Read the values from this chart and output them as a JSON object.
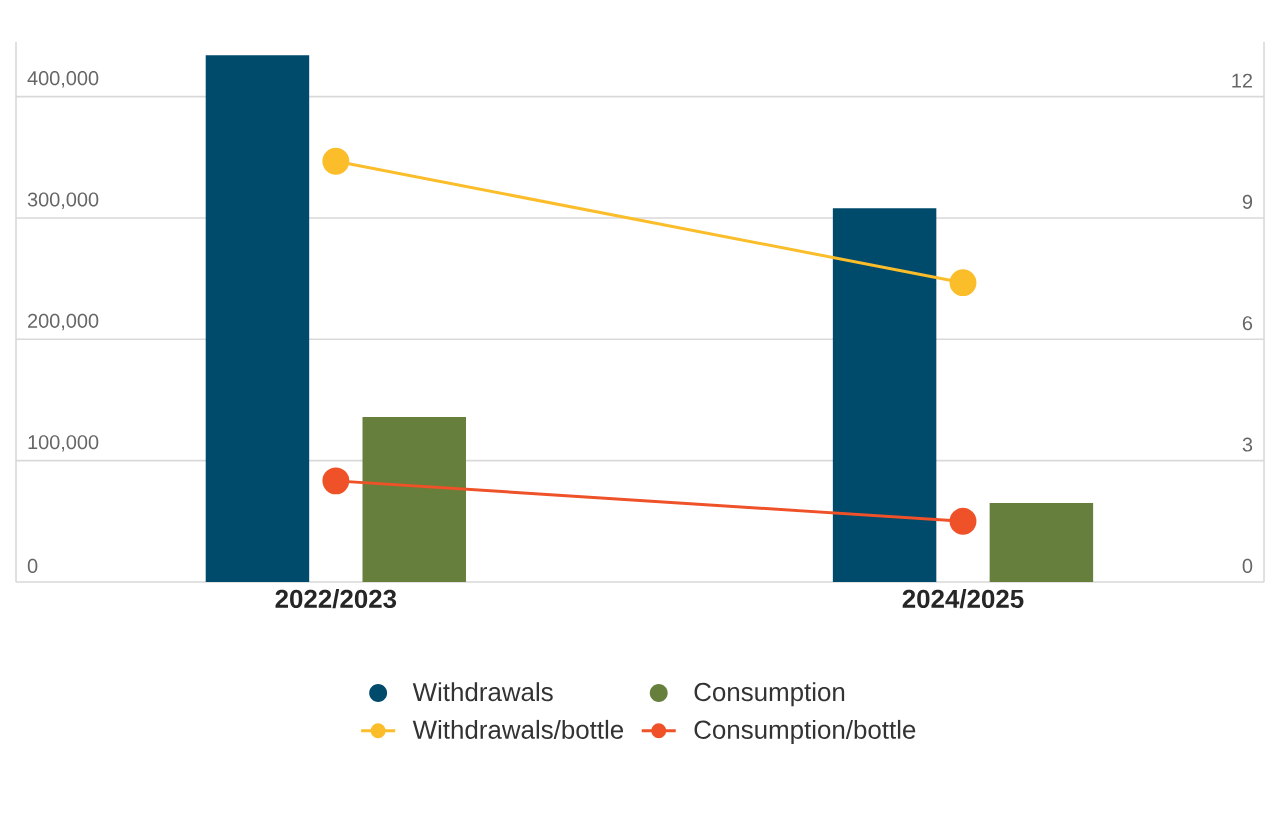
{
  "chart_data": {
    "type": "bar",
    "categories": [
      "2022/2023",
      "2024/2025"
    ],
    "series": [
      {
        "name": "Withdrawals",
        "color": "#004a6b",
        "values": [
          434000,
          308000
        ]
      },
      {
        "name": "Consumption",
        "color": "#667f3c",
        "values": [
          136000,
          65000
        ]
      },
      {
        "name": "Withdrawals/bottle",
        "type": "line",
        "axis": "y2",
        "color": "#fbbd2a",
        "values": [
          10.4,
          7.4
        ]
      },
      {
        "name": "Consumption/bottle",
        "type": "line",
        "axis": "y2",
        "color": "#ef5128",
        "values": [
          2.5,
          1.5
        ]
      }
    ],
    "ylim": [
      0,
      445000
    ],
    "yticks": [
      {
        "value": 0,
        "label": "0"
      },
      {
        "value": 100000,
        "label": "100,000"
      },
      {
        "value": 200000,
        "label": "200,000"
      },
      {
        "value": 300000,
        "label": "300,000"
      },
      {
        "value": 400000,
        "label": "400,000"
      }
    ],
    "y2lim": [
      0,
      13.35
    ],
    "y2ticks": [
      0,
      3,
      6,
      9,
      12
    ],
    "grid": "y",
    "legend": "bottom",
    "marker": "circle"
  }
}
